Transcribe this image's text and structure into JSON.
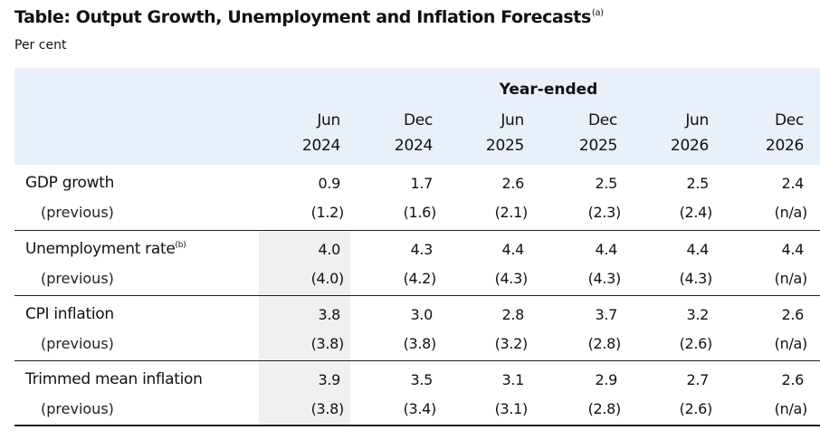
{
  "title": "Table: Output Growth, Unemployment and Inflation Forecasts",
  "title_note": "(a)",
  "unit": "Per cent",
  "colors": {
    "header_bg": "#e9f0fa",
    "shaded_column": "#f0f0f0"
  },
  "header": {
    "group": "Year-ended",
    "columns": [
      {
        "month": "Jun",
        "year": "2024"
      },
      {
        "month": "Dec",
        "year": "2024"
      },
      {
        "month": "Jun",
        "year": "2025"
      },
      {
        "month": "Dec",
        "year": "2025"
      },
      {
        "month": "Jun",
        "year": "2026"
      },
      {
        "month": "Dec",
        "year": "2026"
      }
    ]
  },
  "rows": [
    {
      "label": "GDP growth",
      "note": "",
      "previous_label": "(previous)",
      "current": [
        "0.9",
        "1.7",
        "2.6",
        "2.5",
        "2.5",
        "2.4"
      ],
      "previous": [
        "(1.2)",
        "(1.6)",
        "(2.1)",
        "(2.3)",
        "(2.4)",
        "(n/a)"
      ]
    },
    {
      "label": "Unemployment rate",
      "note": "(b)",
      "previous_label": "(previous)",
      "current": [
        "4.0",
        "4.3",
        "4.4",
        "4.4",
        "4.4",
        "4.4"
      ],
      "previous": [
        "(4.0)",
        "(4.2)",
        "(4.3)",
        "(4.3)",
        "(4.3)",
        "(n/a)"
      ]
    },
    {
      "label": "CPI inflation",
      "note": "",
      "previous_label": "(previous)",
      "current": [
        "3.8",
        "3.0",
        "2.8",
        "3.7",
        "3.2",
        "2.6"
      ],
      "previous": [
        "(3.8)",
        "(3.8)",
        "(3.2)",
        "(2.8)",
        "(2.6)",
        "(n/a)"
      ]
    },
    {
      "label": "Trimmed mean inflation",
      "note": "",
      "previous_label": "(previous)",
      "current": [
        "3.9",
        "3.5",
        "3.1",
        "2.9",
        "2.7",
        "2.6"
      ],
      "previous": [
        "(3.8)",
        "(3.4)",
        "(3.1)",
        "(2.8)",
        "(2.6)",
        "(n/a)"
      ]
    }
  ]
}
